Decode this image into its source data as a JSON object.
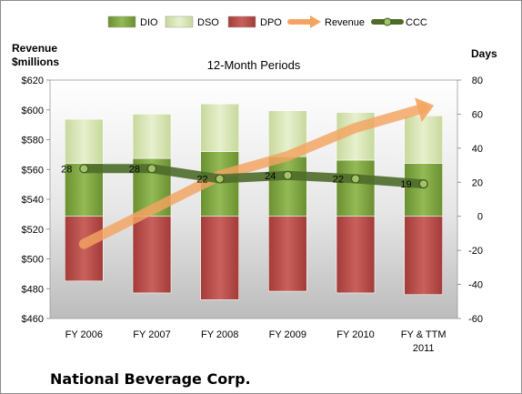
{
  "footer_title": "National Beverage Corp.",
  "chart_data": {
    "type": "bar",
    "stacked": true,
    "title": "12-Month Periods",
    "ylabel_left": "Revenue\n$millions",
    "ylabel_right": "Days",
    "categories": [
      "FY 2006",
      "FY 2007",
      "FY 2008",
      "FY 2009",
      "FY 2010",
      "FY & TTM 2011"
    ],
    "ylim_left": [
      460,
      620
    ],
    "yticks_left": [
      "$460",
      "$480",
      "$500",
      "$520",
      "$540",
      "$560",
      "$580",
      "$600",
      "$620"
    ],
    "ylim_right": [
      -60,
      80
    ],
    "yticks_right": [
      "-60",
      "-40",
      "-20",
      "0",
      "20",
      "40",
      "60",
      "80"
    ],
    "legend_position": "top",
    "series": [
      {
        "name": "DIO",
        "axis": "right",
        "kind": "bar",
        "color": "#7fa640",
        "values": [
          31,
          34,
          38,
          35,
          33,
          31
        ]
      },
      {
        "name": "DSO",
        "axis": "right",
        "kind": "bar",
        "color": "#d7e4b4",
        "values": [
          26,
          26,
          28,
          27,
          28,
          28
        ]
      },
      {
        "name": "DPO",
        "axis": "right",
        "kind": "bar",
        "color": "#b84b48",
        "values": [
          -38,
          -45,
          -49,
          -44,
          -45,
          -46
        ]
      },
      {
        "name": "Revenue",
        "axis": "left",
        "kind": "line-arrow",
        "color": "#f4a460",
        "values": [
          510,
          533,
          556,
          569,
          588,
          601
        ]
      },
      {
        "name": "CCC",
        "axis": "right",
        "kind": "line",
        "color": "#4e6b2a",
        "values": [
          28,
          28,
          22,
          24,
          22,
          19
        ],
        "data_labels": [
          "28",
          "28",
          "22",
          "24",
          "22",
          "19"
        ]
      }
    ]
  }
}
